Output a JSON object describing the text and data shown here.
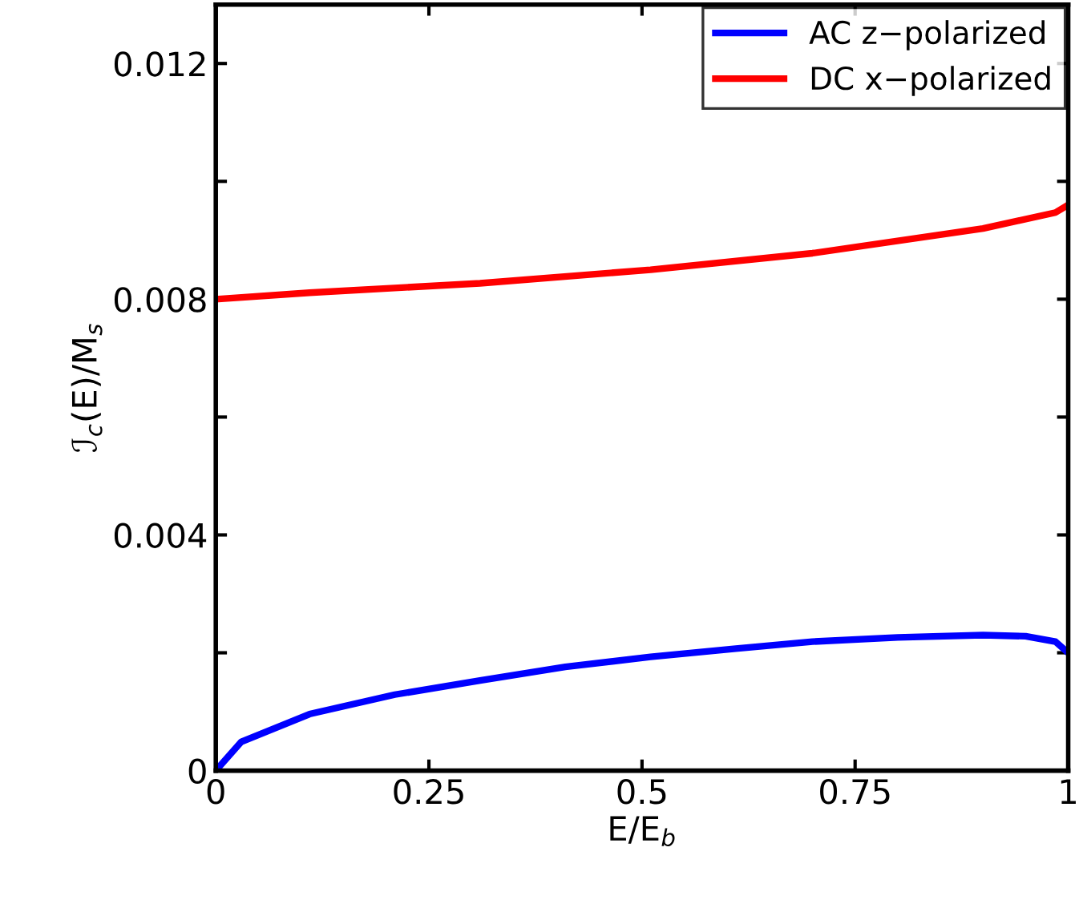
{
  "chart_data": {
    "type": "line",
    "xlabel": "E/E$_{b}$",
    "ylabel": "ℐ$_{c}$(E)/M$_{s}$",
    "xlim": [
      0,
      1
    ],
    "ylim": [
      0,
      0.013
    ],
    "xticks": [
      0,
      0.25,
      0.5,
      0.75,
      1
    ],
    "yticks": [
      0,
      {
        "value": 0.002,
        "label": null
      },
      0.004,
      {
        "value": 0.006,
        "label": null
      },
      0.008,
      {
        "value": 0.01,
        "label": null
      },
      0.012
    ],
    "legend": "top right",
    "grid": false,
    "line_style": "solid",
    "marker": "none",
    "series": [
      {
        "name": "AC z−polarized",
        "color": "#0000ff",
        "x": [
          0,
          0.03,
          0.11,
          0.21,
          0.31,
          0.41,
          0.51,
          0.61,
          0.7,
          0.8,
          0.9,
          0.95,
          0.985,
          1
        ],
        "values": [
          0,
          0.00049,
          0.00096,
          0.00129,
          0.00153,
          0.00176,
          0.00193,
          0.00207,
          0.00219,
          0.00226,
          0.0023,
          0.00228,
          0.00219,
          0.002
        ]
      },
      {
        "name": "DC x−polarized",
        "color": "#ff0000",
        "x": [
          0,
          0.11,
          0.31,
          0.51,
          0.7,
          0.9,
          0.985,
          1
        ],
        "values": [
          0.008,
          0.00811,
          0.00827,
          0.0085,
          0.00878,
          0.0092,
          0.00947,
          0.0096
        ]
      }
    ]
  }
}
